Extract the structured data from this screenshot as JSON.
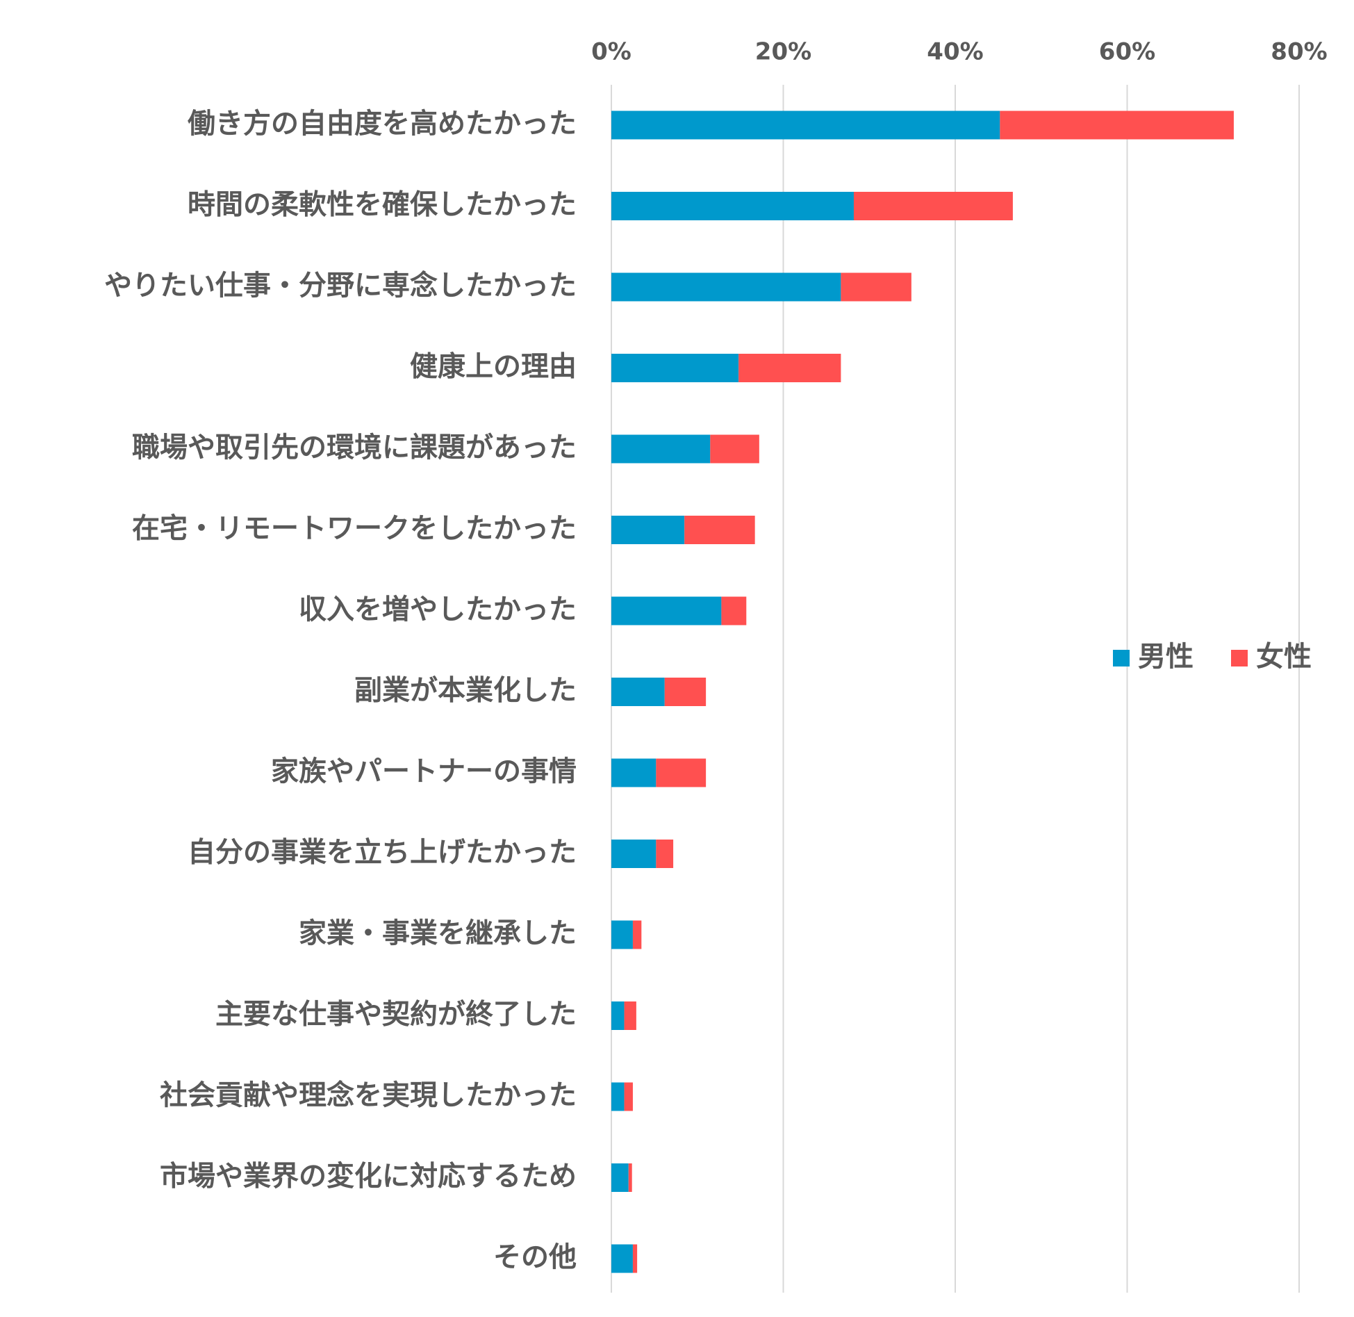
{
  "chart_data": {
    "type": "bar",
    "orientation": "horizontal",
    "stacked": true,
    "categories": [
      "働き方の自由度を高めたかった",
      "時間の柔軟性を確保したかった",
      "やりたい仕事・分野に専念したかった",
      "健康上の理由",
      "職場や取引先の環境に課題があった",
      "在宅・リモートワークをしたかった",
      "収入を増やしたかった",
      "副業が本業化した",
      "家族やパートナーの事情",
      "自分の事業を立ち上げたかった",
      "家業・事業を継承した",
      "主要な仕事や契約が終了した",
      "社会貢献や理念を実現したかった",
      "市場や業界の変化に対応するため",
      "その他"
    ],
    "series": [
      {
        "name": "男性",
        "color": "#0099cc",
        "values": [
          45.2,
          28.2,
          26.7,
          14.8,
          11.5,
          8.5,
          12.8,
          6.2,
          5.2,
          5.2,
          2.5,
          1.5,
          1.5,
          2.0,
          2.5
        ]
      },
      {
        "name": "女性",
        "color": "#ff5050",
        "values": [
          27.2,
          18.5,
          8.2,
          11.9,
          5.7,
          8.2,
          2.9,
          4.8,
          5.8,
          2.0,
          1.0,
          1.4,
          1.0,
          0.4,
          0.5
        ]
      }
    ],
    "xlim": [
      0,
      80
    ],
    "xticks": [
      0,
      20,
      40,
      60,
      80
    ],
    "xtick_labels": [
      "0%",
      "20%",
      "40%",
      "60%",
      "80%"
    ],
    "xaxis_position": "top",
    "grid": "vertical",
    "legend_position": "right",
    "title": "",
    "xlabel": "",
    "ylabel": ""
  }
}
